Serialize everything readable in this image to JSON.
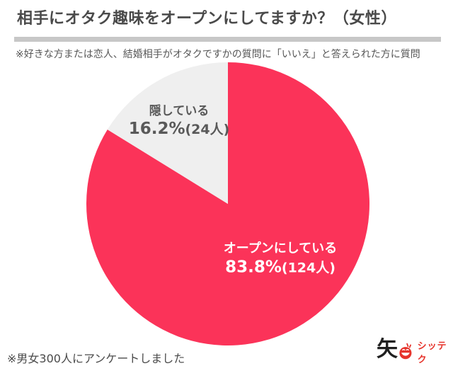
{
  "header": {
    "title": "相手にオタク趣味をオープンにしてますか？（女性）",
    "note": "※好きな方または恋人、結婚相手がオタクですかの質問に「いいえ」と答えられた方に質問"
  },
  "chart_data": {
    "type": "pie",
    "title": "相手にオタク趣味をオープンにしてますか？（女性）",
    "start_angle": "top",
    "direction": "clockwise",
    "legend_position": "labels-inside-and-beside-slices",
    "slices": [
      {
        "label": "オープンにしている",
        "percent": 83.8,
        "count": 124,
        "percent_label": "83.8%",
        "count_label": "(124人)",
        "color": "#FB3359",
        "text_color": "#FFFFFF"
      },
      {
        "label": "隠している",
        "percent": 16.2,
        "count": 24,
        "percent_label": "16.2%",
        "count_label": "(24人)",
        "color": "#EFEFEF",
        "text_color": "#595959"
      }
    ]
  },
  "footer": {
    "note": "※男女300人にアンケートしました",
    "logo": {
      "kanji": "矢",
      "brand": "シッテク",
      "accent_color": "#E6342C"
    }
  }
}
